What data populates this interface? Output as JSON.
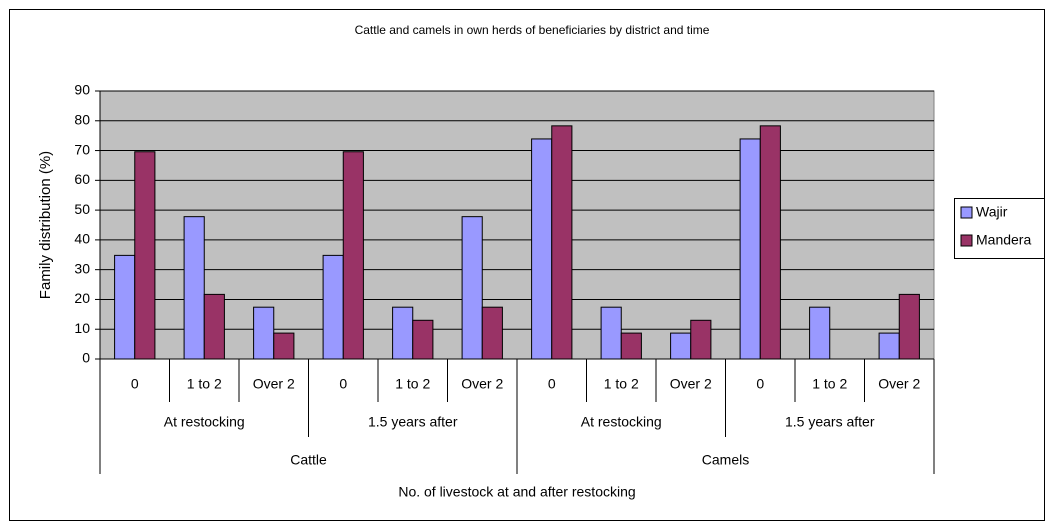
{
  "chart_data": {
    "type": "bar",
    "title": "Cattle and camels in own herds of beneficiaries by district and time",
    "ylabel": "Family distribution (%)",
    "xlabel": "No. of livestock at and after restocking",
    "categories": [
      "0",
      "1 to 2",
      "Over 2",
      "0",
      "1 to 2",
      "Over 2",
      "0",
      "1 to 2",
      "Over 2",
      "0",
      "1 to 2",
      "Over 2"
    ],
    "category_levels": [
      [
        "At restocking",
        "1.5 years after",
        "At restocking",
        "1.5 years after"
      ],
      [
        "Cattle",
        "Camels"
      ]
    ],
    "series": [
      {
        "name": "Wajir",
        "color": "#9999ff",
        "values": [
          34.8,
          47.8,
          17.4,
          34.8,
          17.4,
          47.8,
          73.9,
          17.4,
          8.7,
          73.9,
          17.4,
          8.7
        ]
      },
      {
        "name": "Mandera",
        "color": "#993366",
        "values": [
          69.6,
          21.7,
          8.7,
          69.6,
          13,
          17.4,
          78.3,
          8.7,
          13,
          78.3,
          0,
          21.7
        ]
      }
    ],
    "ylim": [
      0,
      90
    ],
    "yticks": [
      0,
      10,
      20,
      30,
      40,
      50,
      60,
      70,
      80,
      90
    ],
    "grid": true,
    "legend": "right"
  }
}
